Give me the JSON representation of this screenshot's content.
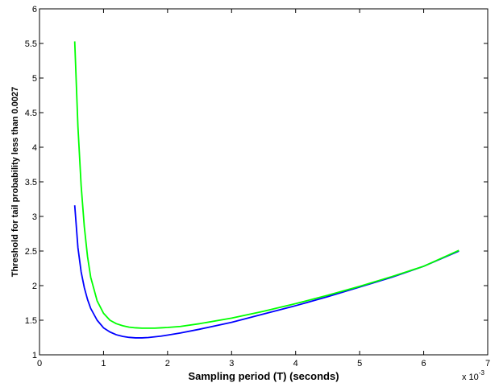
{
  "chart_data": {
    "type": "line",
    "title": "",
    "xlabel": "Sampling period (T) (seconds)",
    "ylabel": "Threshold for tail probability less than 0.0027",
    "x_multiplier": {
      "base": "x 10",
      "exponent": "-3"
    },
    "xlim": [
      0,
      7
    ],
    "ylim": [
      1,
      6
    ],
    "xticks": [
      0,
      1,
      2,
      3,
      4,
      5,
      6,
      7
    ],
    "yticks": [
      1,
      1.5,
      2,
      2.5,
      3,
      3.5,
      4,
      4.5,
      5,
      5.5,
      6
    ],
    "xtick_labels": [
      "0",
      "1",
      "2",
      "3",
      "4",
      "5",
      "6",
      "7"
    ],
    "ytick_labels": [
      "1",
      "1.5",
      "2",
      "2.5",
      "3",
      "3.5",
      "4",
      "4.5",
      "5",
      "5.5",
      "6"
    ],
    "grid": false,
    "series": [
      {
        "color": "#0000ff",
        "x": [
          0.55,
          0.6,
          0.65,
          0.7,
          0.75,
          0.8,
          0.9,
          1.0,
          1.1,
          1.2,
          1.3,
          1.4,
          1.5,
          1.6,
          1.7,
          1.8,
          1.9,
          2.0,
          2.2,
          2.5,
          3.0,
          3.5,
          4.0,
          4.5,
          5.0,
          5.5,
          6.0,
          6.55
        ],
        "y": [
          3.16,
          2.55,
          2.2,
          1.97,
          1.8,
          1.67,
          1.5,
          1.39,
          1.33,
          1.29,
          1.266,
          1.252,
          1.245,
          1.245,
          1.25,
          1.26,
          1.27,
          1.285,
          1.315,
          1.37,
          1.47,
          1.59,
          1.71,
          1.84,
          1.98,
          2.12,
          2.28,
          2.5
        ]
      },
      {
        "color": "#00ff00",
        "x": [
          0.55,
          0.6,
          0.65,
          0.7,
          0.75,
          0.8,
          0.9,
          1.0,
          1.1,
          1.2,
          1.3,
          1.4,
          1.5,
          1.6,
          1.7,
          1.8,
          1.9,
          2.0,
          2.2,
          2.5,
          3.0,
          3.5,
          4.0,
          4.5,
          5.0,
          5.5,
          6.0,
          6.55
        ],
        "y": [
          5.53,
          4.3,
          3.45,
          2.85,
          2.42,
          2.12,
          1.78,
          1.6,
          1.5,
          1.45,
          1.42,
          1.4,
          1.39,
          1.385,
          1.385,
          1.385,
          1.39,
          1.395,
          1.41,
          1.45,
          1.53,
          1.63,
          1.74,
          1.86,
          1.99,
          2.13,
          2.28,
          2.51
        ]
      }
    ]
  }
}
